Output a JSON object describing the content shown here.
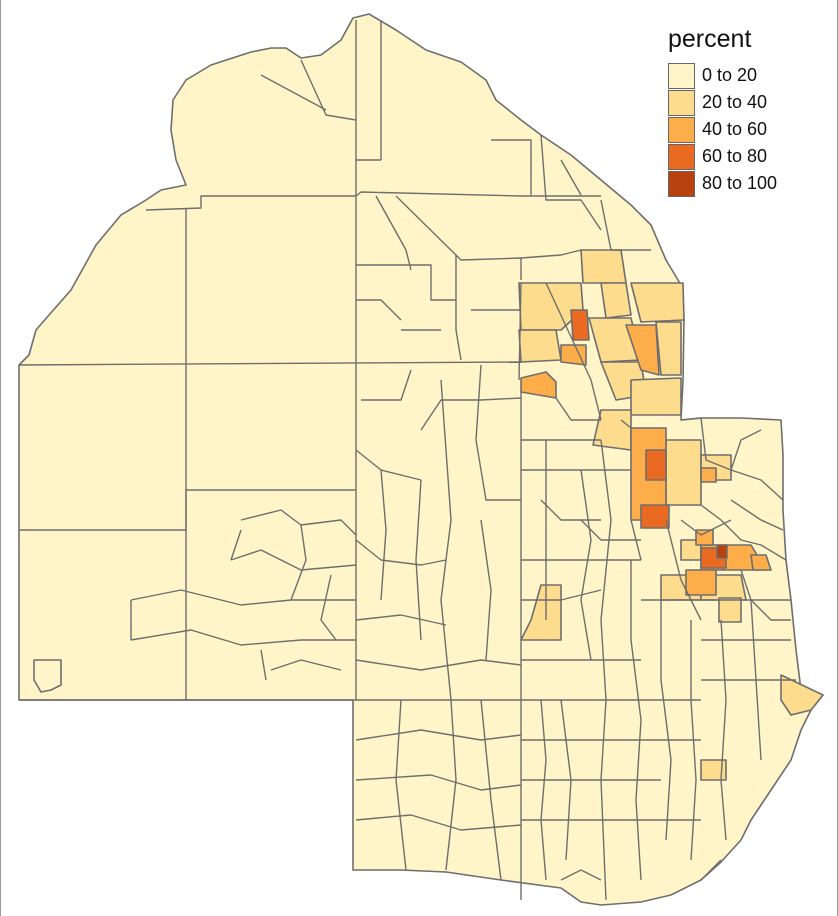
{
  "legend": {
    "title": "percent",
    "items": [
      {
        "label": "0 to 20",
        "color": "#FFF5C8"
      },
      {
        "label": "20 to 40",
        "color": "#FDDC8E"
      },
      {
        "label": "40 to 60",
        "color": "#FDAE4B"
      },
      {
        "label": "60 to 80",
        "color": "#EA6A22"
      },
      {
        "label": "80 to 100",
        "color": "#B8420E"
      }
    ]
  },
  "colors": {
    "border": "#6e6e6e",
    "frame": "#9a9a9a"
  }
}
